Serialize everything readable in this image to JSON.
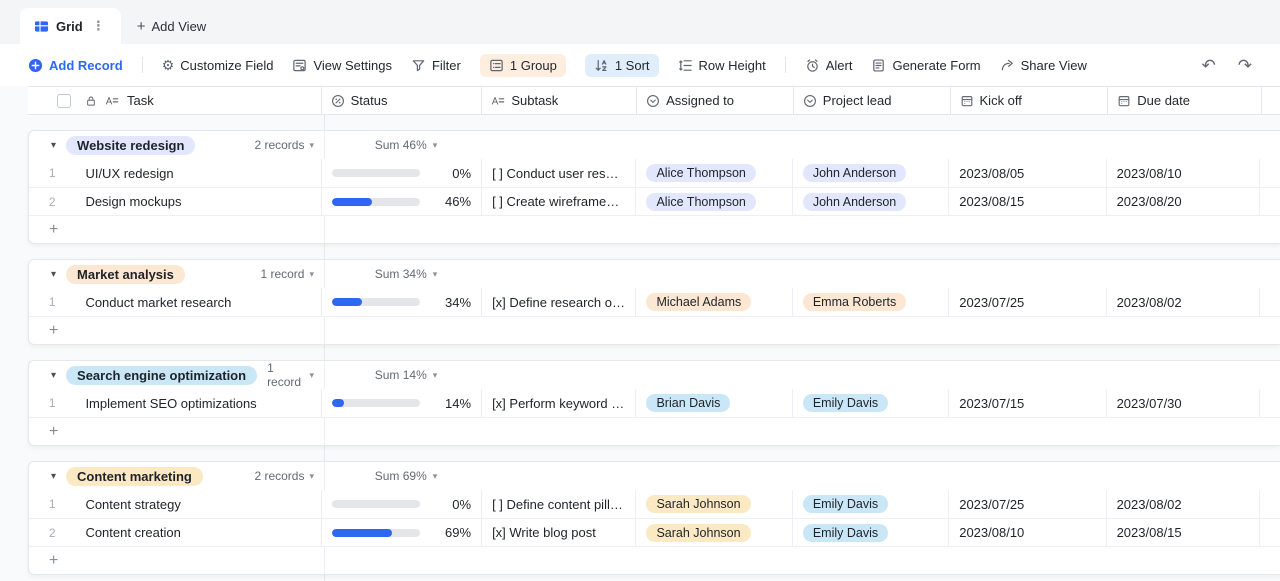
{
  "tabs": {
    "grid": "Grid",
    "add_view": "Add View"
  },
  "toolbar": {
    "add_record": "Add Record",
    "customize_field": "Customize Field",
    "view_settings": "View Settings",
    "filter": "Filter",
    "group": "1 Group",
    "sort": "1 Sort",
    "row_height": "Row Height",
    "alert": "Alert",
    "generate_form": "Generate Form",
    "share_view": "Share View"
  },
  "ui": {
    "plus": "+",
    "kebab": "⋮",
    "caret": "▾",
    "triangle": "▾",
    "undo": "↶",
    "redo": "↷"
  },
  "colors": {
    "accent": "#2f66f4",
    "lavender": "#e2e7fd",
    "peach": "#fce7d2",
    "sky": "#c9e7f6",
    "yellow": "#fae9c3"
  },
  "columns": [
    {
      "label": "Task"
    },
    {
      "label": "Status"
    },
    {
      "label": "Subtask"
    },
    {
      "label": "Assigned to"
    },
    {
      "label": "Project lead"
    },
    {
      "label": "Kick off"
    },
    {
      "label": "Due date"
    }
  ],
  "groups": [
    {
      "name": "Website redesign",
      "badge_color": "#e2e7fd",
      "records_label": "2 records",
      "sum_label": "Sum 46%",
      "rows": [
        {
          "num": "1",
          "task": "UI/UX redesign",
          "progress": 0,
          "percent": "0%",
          "subtask": "[ ] Conduct user resear...",
          "assigned": {
            "label": "Alice Thompson",
            "color": "#e2e7fd"
          },
          "lead": {
            "label": "John Anderson",
            "color": "#e2e7fd"
          },
          "kickoff": "2023/08/05",
          "due": "2023/08/10"
        },
        {
          "num": "2",
          "task": "Design mockups",
          "progress": 46,
          "percent": "46%",
          "subtask": "[ ] Create wireframes a...",
          "assigned": {
            "label": "Alice Thompson",
            "color": "#e2e7fd"
          },
          "lead": {
            "label": "John Anderson",
            "color": "#e2e7fd"
          },
          "kickoff": "2023/08/15",
          "due": "2023/08/20"
        }
      ]
    },
    {
      "name": "Market analysis",
      "badge_color": "#fce7d2",
      "records_label": "1 record",
      "sum_label": "Sum 34%",
      "rows": [
        {
          "num": "1",
          "task": "Conduct market research",
          "progress": 34,
          "percent": "34%",
          "subtask": "[x] Define research obj...",
          "assigned": {
            "label": "Michael Adams",
            "color": "#fce7d2"
          },
          "lead": {
            "label": "Emma Roberts",
            "color": "#fce7d2"
          },
          "kickoff": "2023/07/25",
          "due": "2023/08/02"
        }
      ]
    },
    {
      "name": "Search engine optimization",
      "badge_color": "#c9e7f6",
      "records_label": "1 record",
      "sum_label": "Sum 14%",
      "rows": [
        {
          "num": "1",
          "task": "Implement SEO optimizations",
          "progress": 14,
          "percent": "14%",
          "subtask": "[x] Perform keyword re...",
          "assigned": {
            "label": "Brian Davis",
            "color": "#c9e7f6"
          },
          "lead": {
            "label": "Emily Davis",
            "color": "#c9e7f6"
          },
          "kickoff": "2023/07/15",
          "due": "2023/07/30"
        }
      ]
    },
    {
      "name": "Content marketing",
      "badge_color": "#fae9c3",
      "records_label": "2 records",
      "sum_label": "Sum 69%",
      "rows": [
        {
          "num": "1",
          "task": "Content strategy",
          "progress": 0,
          "percent": "0%",
          "subtask": "[ ] Define content pillar...",
          "assigned": {
            "label": "Sarah Johnson",
            "color": "#fae9c3"
          },
          "lead": {
            "label": "Emily Davis",
            "color": "#c9e7f6"
          },
          "kickoff": "2023/07/25",
          "due": "2023/08/02"
        },
        {
          "num": "2",
          "task": "Content creation",
          "progress": 69,
          "percent": "69%",
          "subtask": "[x] Write blog post",
          "assigned": {
            "label": "Sarah Johnson",
            "color": "#fae9c3"
          },
          "lead": {
            "label": "Emily Davis",
            "color": "#c9e7f6"
          },
          "kickoff": "2023/08/10",
          "due": "2023/08/15"
        }
      ]
    }
  ]
}
